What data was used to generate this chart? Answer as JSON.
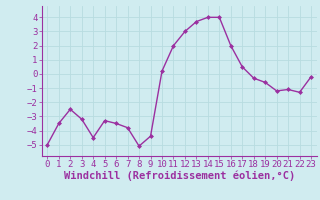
{
  "x": [
    0,
    1,
    2,
    3,
    4,
    5,
    6,
    7,
    8,
    9,
    10,
    11,
    12,
    13,
    14,
    15,
    16,
    17,
    18,
    19,
    20,
    21,
    22,
    23
  ],
  "y": [
    -5,
    -3.5,
    -2.5,
    -3.2,
    -4.5,
    -3.3,
    -3.5,
    -3.8,
    -5.1,
    -4.4,
    0.2,
    2.0,
    3.0,
    3.7,
    4.0,
    4.0,
    2.0,
    0.5,
    -0.3,
    -0.6,
    -1.2,
    -1.1,
    -1.3,
    -0.2
  ],
  "line_color": "#9b30a0",
  "marker": "D",
  "marker_size": 2,
  "bg_color": "#d0ecf0",
  "grid_color": "#b8dce0",
  "xlabel": "Windchill (Refroidissement éolien,°C)",
  "xlabel_color": "#9b30a0",
  "xlim": [
    -0.5,
    23.5
  ],
  "ylim": [
    -5.8,
    4.8
  ],
  "yticks": [
    -5,
    -4,
    -3,
    -2,
    -1,
    0,
    1,
    2,
    3,
    4
  ],
  "xticks": [
    0,
    1,
    2,
    3,
    4,
    5,
    6,
    7,
    8,
    9,
    10,
    11,
    12,
    13,
    14,
    15,
    16,
    17,
    18,
    19,
    20,
    21,
    22,
    23
  ],
  "tick_color": "#9b30a0",
  "tick_fontsize": 6.5,
  "xlabel_fontsize": 7.5,
  "line_width": 1.0
}
